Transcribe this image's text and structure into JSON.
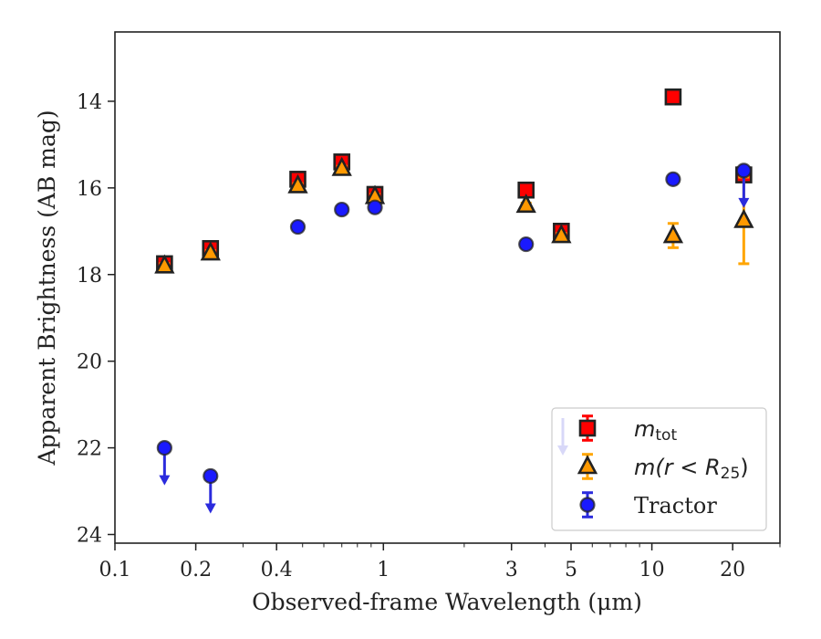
{
  "chart_data": {
    "type": "scatter",
    "title": "",
    "xlabel": "Observed-frame Wavelength (μm)",
    "ylabel": "Apparent Brightness (AB mag)",
    "xscale": "log",
    "xlim": [
      0.1,
      30
    ],
    "ylim": [
      24.2,
      12.4
    ],
    "y_inverted": true,
    "xticks": [
      {
        "value": 0.1,
        "label": "0.1"
      },
      {
        "value": 0.2,
        "label": "0.2"
      },
      {
        "value": 0.4,
        "label": "0.4"
      },
      {
        "value": 1,
        "label": "1"
      },
      {
        "value": 3,
        "label": "3"
      },
      {
        "value": 5,
        "label": "5"
      },
      {
        "value": 10,
        "label": "10"
      },
      {
        "value": 20,
        "label": "20"
      }
    ],
    "yticks": [
      {
        "value": 14,
        "label": "14"
      },
      {
        "value": 16,
        "label": "16"
      },
      {
        "value": 18,
        "label": "18"
      },
      {
        "value": 20,
        "label": "20"
      },
      {
        "value": 22,
        "label": "22"
      },
      {
        "value": 24,
        "label": "24"
      }
    ],
    "legend_position": "lower right",
    "series": [
      {
        "name": "m_tot",
        "label_main": "m",
        "label_sub": "tot",
        "marker": "square",
        "color": "#ff0000",
        "edge_color": "#222222",
        "error_color": "#ff0000",
        "points": [
          {
            "x": 0.153,
            "y": 17.75,
            "err": 0.1
          },
          {
            "x": 0.227,
            "y": 17.4,
            "err": 0.1
          },
          {
            "x": 0.48,
            "y": 15.8,
            "err": 0.08
          },
          {
            "x": 0.7,
            "y": 15.4,
            "err": 0.08
          },
          {
            "x": 0.93,
            "y": 16.15,
            "err": 0.08
          },
          {
            "x": 3.4,
            "y": 16.05,
            "err": 0.05
          },
          {
            "x": 4.6,
            "y": 17.0,
            "err": 0.05
          },
          {
            "x": 12.0,
            "y": 13.9,
            "err": 0.03
          },
          {
            "x": 22.0,
            "y": 15.7,
            "err": 0.05
          }
        ]
      },
      {
        "name": "m(r<R_25)",
        "label_pre": "m(r < R",
        "label_sub": "25",
        "label_post": ")",
        "marker": "triangle",
        "color": "#ff9900",
        "edge_color": "#222222",
        "error_color": "#ffa500",
        "points": [
          {
            "x": 0.153,
            "y": 17.8,
            "err": 0.05
          },
          {
            "x": 0.227,
            "y": 17.5,
            "err": 0.05
          },
          {
            "x": 0.48,
            "y": 15.95,
            "err": 0.05
          },
          {
            "x": 0.7,
            "y": 15.55,
            "err": 0.05
          },
          {
            "x": 0.93,
            "y": 16.2,
            "err": 0.05
          },
          {
            "x": 3.4,
            "y": 16.4,
            "err": 0.05
          },
          {
            "x": 4.6,
            "y": 17.1,
            "err": 0.05
          },
          {
            "x": 12.0,
            "y": 17.1,
            "err": 0.28
          },
          {
            "x": 22.0,
            "y": 16.75,
            "err": 1.0
          }
        ]
      },
      {
        "name": "Tractor",
        "label_main": "Tractor",
        "marker": "circle",
        "color": "#1a1aff",
        "edge_color": "#222222",
        "error_color": "#2b2bdd",
        "points": [
          {
            "x": 0.153,
            "y": 22.0,
            "upper_limit": true
          },
          {
            "x": 0.227,
            "y": 22.65,
            "upper_limit": true
          },
          {
            "x": 0.48,
            "y": 16.9
          },
          {
            "x": 0.7,
            "y": 16.5
          },
          {
            "x": 0.93,
            "y": 16.45
          },
          {
            "x": 3.4,
            "y": 17.3
          },
          {
            "x": 12.0,
            "y": 15.8
          },
          {
            "x": 22.0,
            "y": 15.6,
            "upper_limit": true
          }
        ]
      }
    ]
  }
}
